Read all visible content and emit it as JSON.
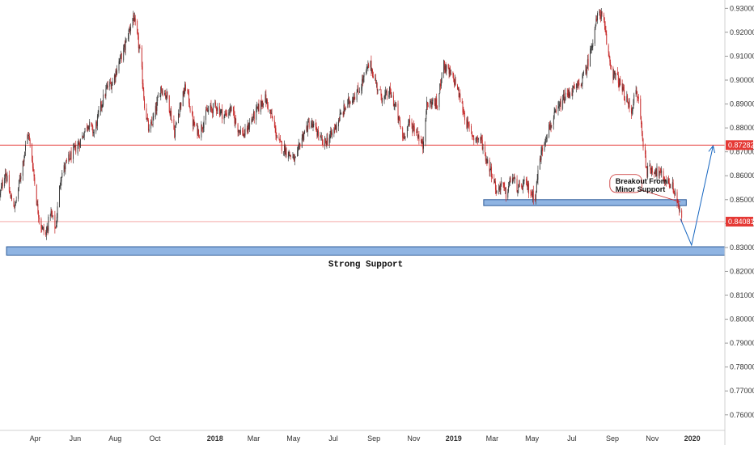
{
  "chart_data": {
    "type": "candlestick",
    "instrument": "",
    "title": "",
    "y_axis": {
      "position": "right",
      "range": [
        0.7535,
        0.9335
      ],
      "ticks": [
        0.76,
        0.77,
        0.78,
        0.79,
        0.8,
        0.81,
        0.82,
        0.83,
        0.84,
        0.85,
        0.86,
        0.87,
        0.88,
        0.89,
        0.9,
        0.91,
        0.92,
        0.93
      ],
      "tick_labels": [
        "0.76000",
        "0.77000",
        "0.78000",
        "0.79000",
        "0.80000",
        "0.81000",
        "0.82000",
        "0.83000",
        "0.84000",
        "0.85000",
        "0.86000",
        "0.87000",
        "0.88000",
        "0.89000",
        "0.90000",
        "0.91000",
        "0.92000",
        "0.93000"
      ]
    },
    "x_axis": {
      "range": [
        "2017-02-06",
        "2020-02-20"
      ],
      "ticks": [
        {
          "date": "2017-04-01",
          "label": "Apr",
          "bold": false
        },
        {
          "date": "2017-06-01",
          "label": "Jun",
          "bold": false
        },
        {
          "date": "2017-08-01",
          "label": "Aug",
          "bold": false
        },
        {
          "date": "2017-10-01",
          "label": "Oct",
          "bold": false
        },
        {
          "date": "2018-01-01",
          "label": "2018",
          "bold": true
        },
        {
          "date": "2018-03-01",
          "label": "Mar",
          "bold": false
        },
        {
          "date": "2018-05-01",
          "label": "May",
          "bold": false
        },
        {
          "date": "2018-07-01",
          "label": "Jul",
          "bold": false
        },
        {
          "date": "2018-09-01",
          "label": "Sep",
          "bold": false
        },
        {
          "date": "2018-11-01",
          "label": "Nov",
          "bold": false
        },
        {
          "date": "2019-01-01",
          "label": "2019",
          "bold": true
        },
        {
          "date": "2019-03-01",
          "label": "Mar",
          "bold": false
        },
        {
          "date": "2019-05-01",
          "label": "May",
          "bold": false
        },
        {
          "date": "2019-07-01",
          "label": "Jul",
          "bold": false
        },
        {
          "date": "2019-09-01",
          "label": "Sep",
          "bold": false
        },
        {
          "date": "2019-11-01",
          "label": "Nov",
          "bold": false
        },
        {
          "date": "2020-01-01",
          "label": "2020",
          "bold": true
        }
      ]
    },
    "price_path": [
      [
        "2017-02-06",
        0.852
      ],
      [
        "2017-02-14",
        0.862
      ],
      [
        "2017-02-22",
        0.851
      ],
      [
        "2017-03-01",
        0.847
      ],
      [
        "2017-03-08",
        0.858
      ],
      [
        "2017-03-15",
        0.869
      ],
      [
        "2017-03-21",
        0.878
      ],
      [
        "2017-03-28",
        0.865
      ],
      [
        "2017-04-04",
        0.847
      ],
      [
        "2017-04-10",
        0.839
      ],
      [
        "2017-04-17",
        0.835
      ],
      [
        "2017-04-24",
        0.845
      ],
      [
        "2017-05-02",
        0.838
      ],
      [
        "2017-05-10",
        0.86
      ],
      [
        "2017-05-20",
        0.866
      ],
      [
        "2017-06-01",
        0.871
      ],
      [
        "2017-06-10",
        0.875
      ],
      [
        "2017-06-20",
        0.882
      ],
      [
        "2017-06-30",
        0.878
      ],
      [
        "2017-07-10",
        0.889
      ],
      [
        "2017-07-20",
        0.897
      ],
      [
        "2017-07-28",
        0.899
      ],
      [
        "2017-08-05",
        0.906
      ],
      [
        "2017-08-15",
        0.913
      ],
      [
        "2017-08-23",
        0.921
      ],
      [
        "2017-08-29",
        0.927
      ],
      [
        "2017-09-04",
        0.918
      ],
      [
        "2017-09-09",
        0.91
      ],
      [
        "2017-09-15",
        0.89
      ],
      [
        "2017-09-22",
        0.878
      ],
      [
        "2017-10-01",
        0.886
      ],
      [
        "2017-10-10",
        0.897
      ],
      [
        "2017-10-20",
        0.893
      ],
      [
        "2017-10-31",
        0.878
      ],
      [
        "2017-11-08",
        0.889
      ],
      [
        "2017-11-18",
        0.898
      ],
      [
        "2017-11-28",
        0.882
      ],
      [
        "2017-12-08",
        0.878
      ],
      [
        "2017-12-20",
        0.887
      ],
      [
        "2018-01-03",
        0.889
      ],
      [
        "2018-01-15",
        0.885
      ],
      [
        "2018-01-25",
        0.888
      ],
      [
        "2018-02-05",
        0.88
      ],
      [
        "2018-02-15",
        0.877
      ],
      [
        "2018-02-25",
        0.883
      ],
      [
        "2018-03-08",
        0.888
      ],
      [
        "2018-03-18",
        0.893
      ],
      [
        "2018-03-28",
        0.885
      ],
      [
        "2018-04-08",
        0.874
      ],
      [
        "2018-04-18",
        0.871
      ],
      [
        "2018-04-28",
        0.868
      ],
      [
        "2018-05-05",
        0.866
      ],
      [
        "2018-05-12",
        0.875
      ],
      [
        "2018-05-25",
        0.882
      ],
      [
        "2018-06-05",
        0.879
      ],
      [
        "2018-06-15",
        0.873
      ],
      [
        "2018-06-28",
        0.877
      ],
      [
        "2018-07-10",
        0.884
      ],
      [
        "2018-07-20",
        0.889
      ],
      [
        "2018-07-30",
        0.893
      ],
      [
        "2018-08-08",
        0.895
      ],
      [
        "2018-08-18",
        0.902
      ],
      [
        "2018-08-26",
        0.907
      ],
      [
        "2018-09-05",
        0.898
      ],
      [
        "2018-09-15",
        0.892
      ],
      [
        "2018-09-25",
        0.895
      ],
      [
        "2018-10-05",
        0.888
      ],
      [
        "2018-10-15",
        0.876
      ],
      [
        "2018-10-25",
        0.882
      ],
      [
        "2018-11-05",
        0.879
      ],
      [
        "2018-11-15",
        0.872
      ],
      [
        "2018-11-20",
        0.889
      ],
      [
        "2018-11-30",
        0.891
      ],
      [
        "2018-12-08",
        0.889
      ],
      [
        "2018-12-15",
        0.907
      ],
      [
        "2018-12-25",
        0.903
      ],
      [
        "2019-01-04",
        0.899
      ],
      [
        "2019-01-12",
        0.891
      ],
      [
        "2019-01-22",
        0.881
      ],
      [
        "2019-02-01",
        0.876
      ],
      [
        "2019-02-12",
        0.875
      ],
      [
        "2019-02-20",
        0.867
      ],
      [
        "2019-03-01",
        0.861
      ],
      [
        "2019-03-08",
        0.853
      ],
      [
        "2019-03-15",
        0.857
      ],
      [
        "2019-03-22",
        0.852
      ],
      [
        "2019-03-31",
        0.86
      ],
      [
        "2019-04-10",
        0.854
      ],
      [
        "2019-04-20",
        0.857
      ],
      [
        "2019-05-01",
        0.852
      ],
      [
        "2019-05-06",
        0.852
      ],
      [
        "2019-05-12",
        0.866
      ],
      [
        "2019-05-22",
        0.877
      ],
      [
        "2019-06-05",
        0.885
      ],
      [
        "2019-06-18",
        0.892
      ],
      [
        "2019-06-28",
        0.895
      ],
      [
        "2019-07-10",
        0.897
      ],
      [
        "2019-07-20",
        0.902
      ],
      [
        "2019-07-28",
        0.91
      ],
      [
        "2019-08-05",
        0.922
      ],
      [
        "2019-08-12",
        0.929
      ],
      [
        "2019-08-18",
        0.925
      ],
      [
        "2019-08-25",
        0.912
      ],
      [
        "2019-09-01",
        0.903
      ],
      [
        "2019-09-10",
        0.9
      ],
      [
        "2019-09-20",
        0.893
      ],
      [
        "2019-09-30",
        0.887
      ],
      [
        "2019-10-06",
        0.895
      ],
      [
        "2019-10-12",
        0.891
      ],
      [
        "2019-10-17",
        0.875
      ],
      [
        "2019-10-24",
        0.862
      ],
      [
        "2019-11-02",
        0.863
      ],
      [
        "2019-11-12",
        0.861
      ],
      [
        "2019-11-22",
        0.858
      ],
      [
        "2019-12-01",
        0.856
      ],
      [
        "2019-12-08",
        0.851
      ],
      [
        "2019-12-14",
        0.843
      ],
      [
        "2019-12-16",
        0.841
      ]
    ],
    "horizontal_lines": [
      {
        "value": 0.87282,
        "label": "0.87282",
        "color": "#e53935",
        "style": "solid"
      },
      {
        "value": 0.84081,
        "label": "0.84081",
        "color": "#e53935",
        "style": "thin"
      }
    ],
    "zones": [
      {
        "name": "strong-support",
        "from": "2017-02-16",
        "to": "2020-02-20",
        "low": 0.8268,
        "high": 0.8303,
        "label": "Strong Support",
        "color": "#7ba7dd"
      },
      {
        "name": "minor-support",
        "from": "2019-02-16",
        "to": "2019-12-23",
        "low": 0.8475,
        "high": 0.85,
        "label": "",
        "color": "#7ba7dd"
      }
    ],
    "projection": [
      [
        "2019-12-14",
        0.842
      ],
      [
        "2019-12-31",
        0.831
      ],
      [
        "2020-02-02",
        0.8725
      ]
    ],
    "annotations": [
      {
        "text_lines": [
          "Breakout From",
          "Minor Support"
        ],
        "box_from": "2019-08-28",
        "box_to": "2019-10-16",
        "box_top": 0.8605,
        "box_bottom": 0.853,
        "pointer_to": [
          "2019-12-14",
          0.849
        ]
      }
    ],
    "colors": {
      "up_candle": "#3a3a3a",
      "down_candle": "#c62828",
      "axis_text": "#333333",
      "projection": "#1565c0",
      "zone_border": "#2f5d9a"
    }
  }
}
